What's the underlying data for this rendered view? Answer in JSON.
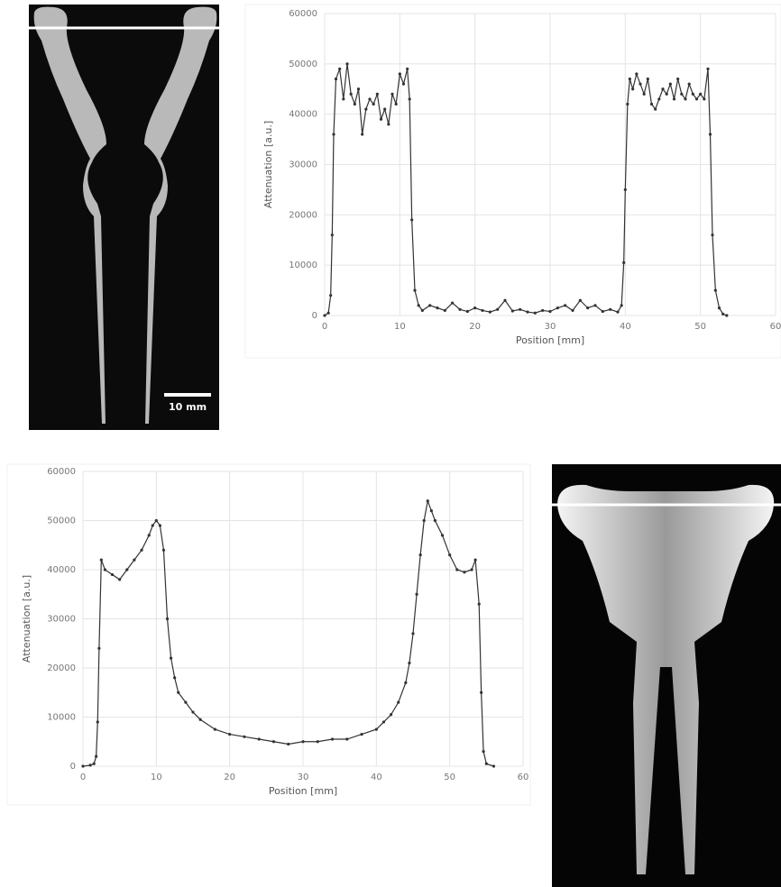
{
  "chart_data": [
    {
      "type": "line",
      "xlabel": "Position [mm]",
      "ylabel": "Attenuation [a.u.]",
      "xlim": [
        0,
        60
      ],
      "xticks": [
        0,
        10,
        20,
        30,
        40,
        50,
        60
      ],
      "ylim": [
        0,
        60000
      ],
      "yticks": [
        0,
        10000,
        20000,
        30000,
        40000,
        50000,
        60000
      ],
      "grid": true,
      "series": [
        {
          "color": "#333333",
          "x": [
            0,
            0.5,
            0.8,
            1.0,
            1.2,
            1.5,
            2,
            2.5,
            3,
            3.5,
            4,
            4.5,
            5,
            5.5,
            6,
            6.5,
            7,
            7.5,
            8,
            8.5,
            9,
            9.5,
            10,
            10.5,
            11,
            11.3,
            11.6,
            12,
            12.5,
            13,
            14,
            15,
            16,
            17,
            18,
            19,
            20,
            21,
            22,
            23,
            24,
            25,
            26,
            27,
            28,
            29,
            30,
            31,
            32,
            33,
            34,
            35,
            36,
            37,
            38,
            39,
            39.5,
            39.8,
            40,
            40.3,
            40.6,
            41,
            41.5,
            42,
            42.5,
            43,
            43.5,
            44,
            44.5,
            45,
            45.5,
            46,
            46.5,
            47,
            47.5,
            48,
            48.5,
            49,
            49.5,
            50,
            50.5,
            51,
            51.3,
            51.6,
            52,
            52.5,
            53,
            53.5
          ],
          "values": [
            0,
            500,
            4000,
            16000,
            36000,
            47000,
            49000,
            43000,
            50000,
            44000,
            42000,
            45000,
            36000,
            41000,
            43000,
            42000,
            44000,
            39000,
            41000,
            38000,
            44000,
            42000,
            48000,
            46000,
            49000,
            43000,
            19000,
            5000,
            2000,
            1000,
            2000,
            1500,
            1000,
            2500,
            1200,
            800,
            1500,
            1000,
            700,
            1200,
            3000,
            900,
            1200,
            700,
            500,
            1000,
            800,
            1500,
            2000,
            1000,
            3000,
            1500,
            2000,
            800,
            1200,
            700,
            2000,
            10500,
            25000,
            42000,
            47000,
            45000,
            48000,
            46000,
            44000,
            47000,
            42000,
            41000,
            43000,
            45000,
            44000,
            46000,
            43000,
            47000,
            44000,
            43000,
            46000,
            44000,
            43000,
            44000,
            43000,
            49000,
            36000,
            16000,
            5000,
            1500,
            300,
            0
          ]
        }
      ]
    },
    {
      "type": "line",
      "xlabel": "Position [mm]",
      "ylabel": "Attenuation [a.u.]",
      "xlim": [
        0,
        60
      ],
      "xticks": [
        0,
        10,
        20,
        30,
        40,
        50,
        60
      ],
      "ylim": [
        0,
        60000
      ],
      "yticks": [
        0,
        10000,
        20000,
        30000,
        40000,
        50000,
        60000
      ],
      "grid": true,
      "series": [
        {
          "color": "#333333",
          "x": [
            0,
            1,
            1.5,
            1.8,
            2,
            2.2,
            2.5,
            3,
            4,
            5,
            6,
            7,
            8,
            9,
            9.5,
            10,
            10.5,
            11,
            11.5,
            12,
            12.5,
            13,
            14,
            15,
            16,
            18,
            20,
            22,
            24,
            26,
            28,
            30,
            32,
            34,
            36,
            38,
            40,
            41,
            42,
            43,
            44,
            44.5,
            45,
            45.5,
            46,
            46.5,
            47,
            47.5,
            48,
            49,
            50,
            51,
            52,
            53,
            53.5,
            54,
            54.3,
            54.6,
            55,
            56
          ],
          "values": [
            0,
            200,
            500,
            2000,
            9000,
            24000,
            42000,
            40000,
            39000,
            38000,
            40000,
            42000,
            44000,
            47000,
            49000,
            50000,
            49000,
            44000,
            30000,
            22000,
            18000,
            15000,
            13000,
            11000,
            9500,
            7500,
            6500,
            6000,
            5500,
            5000,
            4500,
            5000,
            5000,
            5500,
            5500,
            6500,
            7500,
            9000,
            10500,
            13000,
            17000,
            21000,
            27000,
            35000,
            43000,
            50000,
            54000,
            52000,
            50000,
            47000,
            43000,
            40000,
            39500,
            40000,
            42000,
            33000,
            15000,
            3000,
            500,
            0
          ]
        }
      ]
    }
  ],
  "images": [
    {
      "scale_bar": "10 mm"
    }
  ]
}
